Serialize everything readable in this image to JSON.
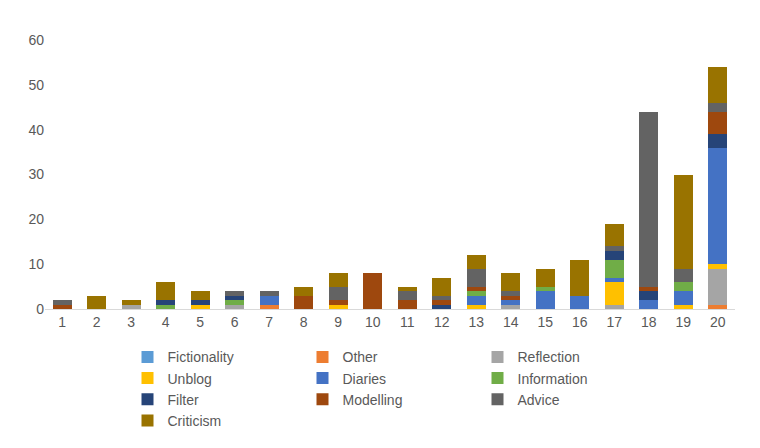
{
  "chart_data": {
    "type": "bar",
    "stacked": true,
    "grid": false,
    "legend": "bottom",
    "categories": [
      1,
      2,
      3,
      4,
      5,
      6,
      7,
      8,
      9,
      10,
      11,
      12,
      13,
      14,
      15,
      16,
      17,
      18,
      19,
      20
    ],
    "ylim": [
      0,
      60
    ],
    "yticks": [
      0,
      10,
      20,
      30,
      40,
      50,
      60
    ],
    "series": [
      {
        "name": "Fictionality",
        "color": "#5B9BD5",
        "values": [
          0,
          0,
          0,
          0,
          0,
          0,
          0,
          0,
          0,
          0,
          0,
          0,
          0,
          0,
          0,
          0,
          0,
          0,
          0,
          0
        ]
      },
      {
        "name": "Other",
        "color": "#ED7D31",
        "values": [
          0,
          0,
          0,
          0,
          0,
          0,
          1,
          0,
          0,
          0,
          0,
          0,
          0,
          0,
          0,
          0,
          0,
          0,
          0,
          1
        ]
      },
      {
        "name": "Reflection",
        "color": "#A5A5A5",
        "values": [
          0,
          0,
          1,
          0,
          0,
          1,
          0,
          0,
          0,
          0,
          0,
          0,
          0,
          1,
          0,
          0,
          1,
          0,
          0,
          8
        ]
      },
      {
        "name": "Unblog",
        "color": "#FFC000",
        "values": [
          0,
          0,
          0,
          0,
          1,
          0,
          0,
          0,
          1,
          0,
          0,
          0,
          1,
          0,
          0,
          0,
          5,
          0,
          1,
          1
        ]
      },
      {
        "name": "Diaries",
        "color": "#4472C4",
        "values": [
          0,
          0,
          0,
          0,
          0,
          0,
          2,
          0,
          0,
          0,
          0,
          0,
          2,
          1,
          4,
          3,
          1,
          2,
          3,
          26
        ]
      },
      {
        "name": "Information",
        "color": "#70AD47",
        "values": [
          0,
          0,
          0,
          1,
          0,
          1,
          0,
          0,
          0,
          0,
          0,
          0,
          1,
          0,
          1,
          0,
          4,
          0,
          2,
          0
        ]
      },
      {
        "name": "Filter",
        "color": "#264478",
        "values": [
          0,
          0,
          0,
          1,
          1,
          1,
          0,
          0,
          0,
          0,
          0,
          1,
          0,
          0,
          0,
          0,
          2,
          2,
          0,
          3
        ]
      },
      {
        "name": "Modelling",
        "color": "#9E480E",
        "values": [
          1,
          0,
          0,
          0,
          0,
          0,
          0,
          3,
          1,
          8,
          2,
          1,
          1,
          1,
          0,
          0,
          0,
          1,
          0,
          5
        ]
      },
      {
        "name": "Advice",
        "color": "#636363",
        "values": [
          1,
          0,
          0,
          0,
          0,
          1,
          1,
          0,
          3,
          0,
          2,
          1,
          4,
          1,
          0,
          0,
          1,
          39,
          3,
          2
        ]
      },
      {
        "name": "Criticism",
        "color": "#997300",
        "values": [
          0,
          3,
          1,
          4,
          2,
          0,
          0,
          2,
          3,
          0,
          1,
          4,
          3,
          4,
          4,
          8,
          5,
          0,
          21,
          8
        ]
      }
    ]
  }
}
